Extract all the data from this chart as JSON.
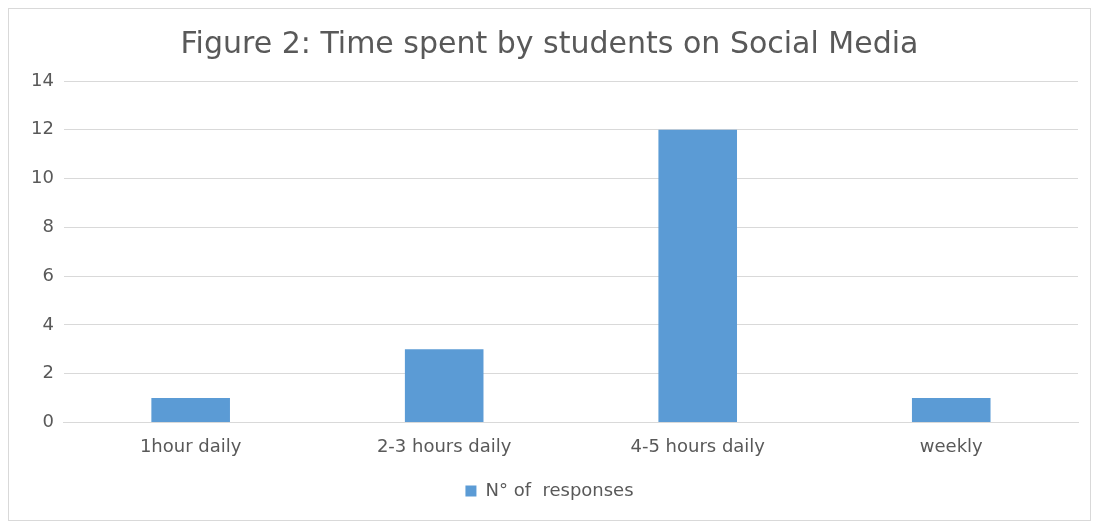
{
  "chart_data": {
    "type": "bar",
    "title": "Figure 2: Time spent by students on Social Media",
    "categories": [
      "1hour daily",
      "2-3 hours daily",
      "4-5 hours daily",
      "weekly"
    ],
    "series": [
      {
        "name": "N° of  responses",
        "color": "#5b9bd5",
        "values": [
          1,
          3,
          12,
          1
        ]
      }
    ],
    "ylim": [
      0,
      14
    ],
    "yticks": [
      0,
      2,
      4,
      6,
      8,
      10,
      12,
      14
    ],
    "grid": "y",
    "legend": "bottom"
  }
}
